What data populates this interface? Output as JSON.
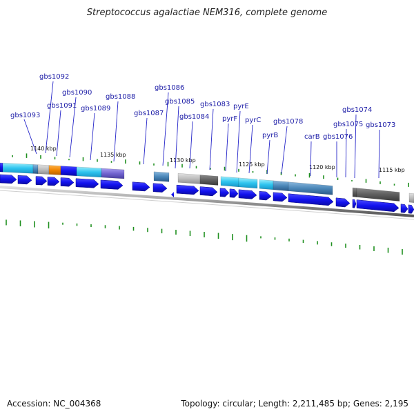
{
  "title": "Streptococcus agalactiae NEM316, complete genome",
  "footer": {
    "accession": "Accession: NC_004368",
    "summary": "Topology: circular; Length: 2,211,485 bp; Genes: 2,195"
  },
  "colors": {
    "gene_blue": "#1f1fee",
    "cyan": "#2ec4ef",
    "light_cyan": "#7fe0f8",
    "gray": "#bdbdbd",
    "dark_gray": "#5e5e5e",
    "orange": "#ef8400",
    "purple": "#7264d0",
    "steel": "#4a86b8",
    "gc_tick": "#1f8f1f",
    "label": "#1a1aa6",
    "backbone": "#888888"
  },
  "gene_labels": [
    "gbs1093",
    "gbs1092",
    "gbs1091",
    "gbs1090",
    "gbs1089",
    "gbs1088",
    "gbs1087",
    "gbs1086",
    "gbs1085",
    "gbs1084",
    "gbs1083",
    "pyrF",
    "pyrE",
    "pyrC",
    "pyrB",
    "gbs1078",
    "carB",
    "gbs1076",
    "gbs1075",
    "gbs1074",
    "gbs1073"
  ],
  "kbp_labels": [
    "1140 kbp",
    "1135 kbp",
    "1130 kbp",
    "1125 kbp",
    "1120 kbp",
    "1115 kbp"
  ]
}
